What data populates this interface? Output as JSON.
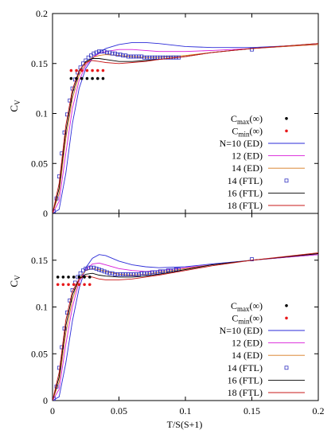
{
  "xlabel": "T/S(S+1)",
  "chart_data": [
    {
      "type": "line",
      "ylabel": "C",
      "ylabel_sub": "V",
      "xlim": [
        0,
        0.2
      ],
      "ylim": [
        0,
        0.2
      ],
      "xticks": [
        0,
        0.05,
        0.1,
        0.15,
        0.2
      ],
      "xtick_labels": [
        "0",
        "0.05",
        "0.1",
        "0.15",
        "0.2"
      ],
      "yticks": [
        0,
        0.05,
        0.1,
        0.15,
        0.2
      ],
      "ytick_labels": [
        "0",
        "0.05",
        "0.1",
        "0.15",
        "0.2"
      ],
      "show_xtick_labels": false,
      "legend_position": "bottom-right",
      "dot_series": [
        {
          "legend_main": "C",
          "legend_sub": "max",
          "legend_suffix": "(∞)",
          "color": "#000000",
          "x": [
            0.014,
            0.018,
            0.022,
            0.026,
            0.03,
            0.034,
            0.038
          ],
          "y": 0.135
        },
        {
          "legend_main": "C",
          "legend_sub": "min",
          "legend_suffix": "(∞)",
          "color": "#e8191b",
          "x": [
            0.014,
            0.018,
            0.022,
            0.026,
            0.03,
            0.034,
            0.038
          ],
          "y": 0.143
        }
      ],
      "series": [
        {
          "name": "N=10 (ED)",
          "color": "#2b2bd8",
          "style": "line",
          "x": [
            0,
            0.005,
            0.01,
            0.015,
            0.02,
            0.025,
            0.03,
            0.035,
            0.04,
            0.05,
            0.06,
            0.07,
            0.08,
            0.1,
            0.12,
            0.15,
            0.2
          ],
          "y": [
            0,
            0.004,
            0.04,
            0.09,
            0.125,
            0.145,
            0.155,
            0.161,
            0.165,
            0.169,
            0.171,
            0.171,
            0.17,
            0.167,
            0.166,
            0.166,
            0.169
          ]
        },
        {
          "name": "12 (ED)",
          "color": "#d81bd8",
          "style": "line",
          "x": [
            0,
            0.005,
            0.01,
            0.015,
            0.02,
            0.025,
            0.03,
            0.035,
            0.04,
            0.05,
            0.06,
            0.07,
            0.08,
            0.1,
            0.12,
            0.15,
            0.2
          ],
          "y": [
            0,
            0.012,
            0.06,
            0.105,
            0.133,
            0.148,
            0.156,
            0.16,
            0.162,
            0.164,
            0.164,
            0.163,
            0.162,
            0.162,
            0.163,
            0.165,
            0.169
          ]
        },
        {
          "name": "14 (ED)",
          "color": "#d8791b",
          "style": "line",
          "x": [
            0,
            0.005,
            0.01,
            0.015,
            0.02,
            0.025,
            0.03,
            0.035,
            0.04,
            0.05,
            0.06,
            0.07,
            0.08,
            0.1,
            0.12,
            0.15,
            0.2
          ],
          "y": [
            0,
            0.02,
            0.075,
            0.115,
            0.138,
            0.15,
            0.156,
            0.158,
            0.159,
            0.158,
            0.157,
            0.156,
            0.156,
            0.158,
            0.161,
            0.165,
            0.169
          ]
        },
        {
          "name": "14 (FTL)",
          "color": "#3030c0",
          "style": "squares",
          "x": [
            0.001,
            0.003,
            0.005,
            0.007,
            0.009,
            0.011,
            0.013,
            0.015,
            0.017,
            0.019,
            0.021,
            0.023,
            0.025,
            0.027,
            0.029,
            0.031,
            0.033,
            0.035,
            0.037,
            0.039,
            0.041,
            0.043,
            0.045,
            0.047,
            0.049,
            0.051,
            0.053,
            0.055,
            0.057,
            0.059,
            0.061,
            0.063,
            0.065,
            0.067,
            0.069,
            0.071,
            0.073,
            0.075,
            0.077,
            0.079,
            0.081,
            0.083,
            0.085,
            0.087,
            0.089,
            0.091,
            0.093,
            0.095,
            0.15
          ],
          "y": [
            0.002,
            0.015,
            0.037,
            0.06,
            0.081,
            0.099,
            0.113,
            0.125,
            0.134,
            0.141,
            0.146,
            0.15,
            0.153,
            0.156,
            0.158,
            0.16,
            0.161,
            0.162,
            0.162,
            0.162,
            0.161,
            0.161,
            0.16,
            0.16,
            0.159,
            0.159,
            0.158,
            0.158,
            0.157,
            0.157,
            0.157,
            0.157,
            0.157,
            0.157,
            0.156,
            0.156,
            0.156,
            0.156,
            0.156,
            0.156,
            0.156,
            0.156,
            0.156,
            0.156,
            0.156,
            0.156,
            0.156,
            0.156,
            0.164
          ]
        },
        {
          "name": "16 (FTL)",
          "color": "#000000",
          "style": "line",
          "x": [
            0,
            0.005,
            0.01,
            0.015,
            0.02,
            0.025,
            0.03,
            0.035,
            0.04,
            0.05,
            0.06,
            0.07,
            0.08,
            0.1,
            0.12,
            0.15,
            0.2
          ],
          "y": [
            0,
            0.025,
            0.082,
            0.12,
            0.142,
            0.152,
            0.155,
            0.155,
            0.154,
            0.152,
            0.152,
            0.153,
            0.154,
            0.157,
            0.161,
            0.165,
            0.17
          ]
        },
        {
          "name": "18 (FTL)",
          "color": "#c81818",
          "style": "line",
          "x": [
            0,
            0.005,
            0.01,
            0.015,
            0.02,
            0.025,
            0.03,
            0.035,
            0.04,
            0.05,
            0.06,
            0.07,
            0.08,
            0.1,
            0.12,
            0.15,
            0.2
          ],
          "y": [
            0,
            0.03,
            0.088,
            0.124,
            0.143,
            0.151,
            0.153,
            0.152,
            0.151,
            0.15,
            0.151,
            0.152,
            0.154,
            0.157,
            0.161,
            0.165,
            0.17
          ]
        }
      ]
    },
    {
      "type": "line",
      "ylabel": "C",
      "ylabel_sub": "V",
      "xlim": [
        0,
        0.2
      ],
      "ylim": [
        0,
        0.2
      ],
      "xticks": [
        0,
        0.05,
        0.1,
        0.15,
        0.2
      ],
      "xtick_labels": [
        "0",
        "0.05",
        "0.1",
        "0.15",
        "0.2"
      ],
      "yticks": [
        0,
        0.05,
        0.1,
        0.15
      ],
      "ytick_labels": [
        "0",
        "0.05",
        "0.1",
        "0.15"
      ],
      "show_xtick_labels": true,
      "legend_position": "bottom-right",
      "dot_series": [
        {
          "legend_main": "C",
          "legend_sub": "max",
          "legend_suffix": "(∞)",
          "color": "#000000",
          "x": [
            0.004,
            0.008,
            0.012,
            0.016,
            0.02,
            0.024,
            0.028
          ],
          "y": 0.132
        },
        {
          "legend_main": "C",
          "legend_sub": "min",
          "legend_suffix": "(∞)",
          "color": "#e8191b",
          "x": [
            0.004,
            0.008,
            0.012,
            0.016,
            0.02,
            0.024,
            0.028
          ],
          "y": 0.124
        }
      ],
      "series": [
        {
          "name": "N=10 (ED)",
          "color": "#2b2bd8",
          "style": "line",
          "x": [
            0,
            0.005,
            0.01,
            0.015,
            0.02,
            0.025,
            0.03,
            0.035,
            0.04,
            0.05,
            0.06,
            0.07,
            0.08,
            0.1,
            0.12,
            0.15,
            0.2
          ],
          "y": [
            0,
            0.004,
            0.04,
            0.085,
            0.12,
            0.142,
            0.152,
            0.156,
            0.155,
            0.149,
            0.145,
            0.143,
            0.142,
            0.143,
            0.146,
            0.15,
            0.156
          ]
        },
        {
          "name": "12 (ED)",
          "color": "#d81bd8",
          "style": "line",
          "x": [
            0,
            0.005,
            0.01,
            0.015,
            0.02,
            0.025,
            0.03,
            0.035,
            0.04,
            0.05,
            0.06,
            0.07,
            0.08,
            0.1,
            0.12,
            0.15,
            0.2
          ],
          "y": [
            0,
            0.012,
            0.06,
            0.1,
            0.127,
            0.14,
            0.146,
            0.147,
            0.145,
            0.141,
            0.139,
            0.138,
            0.139,
            0.142,
            0.145,
            0.15,
            0.156
          ]
        },
        {
          "name": "14 (ED)",
          "color": "#d8791b",
          "style": "line",
          "x": [
            0,
            0.005,
            0.01,
            0.015,
            0.02,
            0.025,
            0.03,
            0.035,
            0.04,
            0.05,
            0.06,
            0.07,
            0.08,
            0.1,
            0.12,
            0.15,
            0.2
          ],
          "y": [
            0,
            0.02,
            0.072,
            0.108,
            0.13,
            0.139,
            0.141,
            0.14,
            0.138,
            0.135,
            0.134,
            0.135,
            0.137,
            0.141,
            0.145,
            0.15,
            0.157
          ]
        },
        {
          "name": "14 (FTL)",
          "color": "#3030c0",
          "style": "squares",
          "x": [
            0.001,
            0.003,
            0.005,
            0.007,
            0.009,
            0.011,
            0.013,
            0.015,
            0.017,
            0.019,
            0.021,
            0.023,
            0.025,
            0.027,
            0.029,
            0.031,
            0.033,
            0.035,
            0.037,
            0.039,
            0.041,
            0.043,
            0.045,
            0.047,
            0.049,
            0.051,
            0.053,
            0.055,
            0.057,
            0.059,
            0.061,
            0.063,
            0.065,
            0.067,
            0.069,
            0.071,
            0.073,
            0.075,
            0.077,
            0.079,
            0.081,
            0.083,
            0.085,
            0.087,
            0.089,
            0.091,
            0.093,
            0.095,
            0.15
          ],
          "y": [
            0.002,
            0.015,
            0.035,
            0.057,
            0.077,
            0.094,
            0.107,
            0.118,
            0.126,
            0.132,
            0.136,
            0.139,
            0.141,
            0.142,
            0.142,
            0.142,
            0.141,
            0.14,
            0.139,
            0.138,
            0.137,
            0.136,
            0.136,
            0.135,
            0.135,
            0.135,
            0.135,
            0.135,
            0.135,
            0.135,
            0.135,
            0.135,
            0.135,
            0.136,
            0.136,
            0.136,
            0.136,
            0.137,
            0.137,
            0.137,
            0.138,
            0.138,
            0.138,
            0.139,
            0.139,
            0.139,
            0.14,
            0.14,
            0.151
          ]
        },
        {
          "name": "16 (FTL)",
          "color": "#000000",
          "style": "line",
          "x": [
            0,
            0.005,
            0.01,
            0.015,
            0.02,
            0.025,
            0.03,
            0.035,
            0.04,
            0.05,
            0.06,
            0.07,
            0.08,
            0.1,
            0.12,
            0.15,
            0.2
          ],
          "y": [
            0,
            0.025,
            0.08,
            0.113,
            0.13,
            0.135,
            0.136,
            0.134,
            0.133,
            0.132,
            0.132,
            0.133,
            0.135,
            0.14,
            0.145,
            0.15,
            0.157
          ]
        },
        {
          "name": "18 (FTL)",
          "color": "#c81818",
          "style": "line",
          "x": [
            0,
            0.005,
            0.01,
            0.015,
            0.02,
            0.025,
            0.03,
            0.035,
            0.04,
            0.05,
            0.06,
            0.07,
            0.08,
            0.1,
            0.12,
            0.15,
            0.2
          ],
          "y": [
            0,
            0.03,
            0.086,
            0.117,
            0.13,
            0.133,
            0.132,
            0.13,
            0.129,
            0.129,
            0.13,
            0.132,
            0.134,
            0.139,
            0.144,
            0.15,
            0.158
          ]
        }
      ]
    }
  ]
}
